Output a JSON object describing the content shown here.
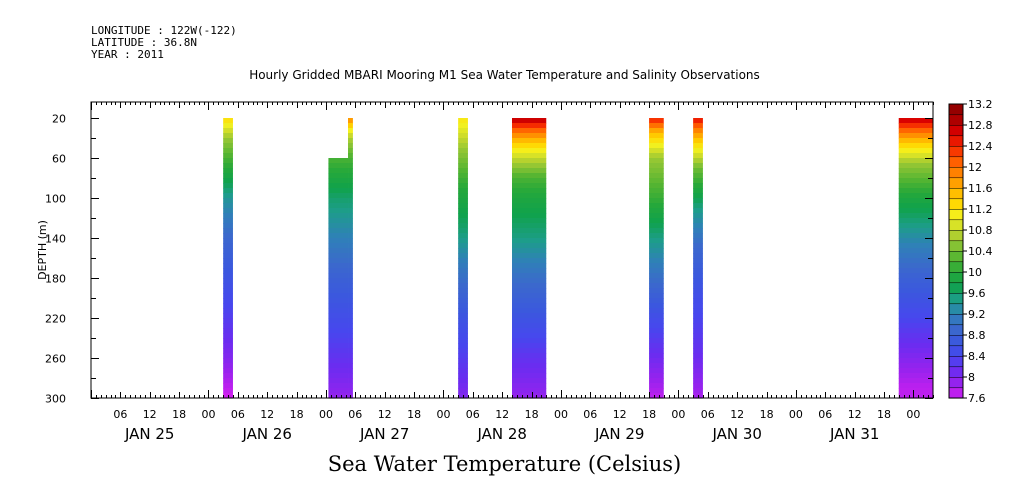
{
  "header": {
    "longitude": "LONGITUDE : 122W(-122)",
    "latitude": "LATITUDE : 36.8N",
    "year": "YEAR : 2011"
  },
  "chart_data": {
    "type": "heatmap",
    "title": "Hourly Gridded MBARI Mooring M1 Sea Water Temperature and Salinity Observations",
    "subtitle": "Sea Water Temperature (Celsius)",
    "xlabel": "",
    "ylabel": "DEPTH (m)",
    "x_range_hours": [
      0,
      172
    ],
    "x_day_labels": [
      "JAN 25",
      "JAN 26",
      "JAN 27",
      "JAN 28",
      "JAN 29",
      "JAN 30",
      "JAN 31"
    ],
    "x_hour_tick_labels": [
      "06",
      "12",
      "18",
      "00"
    ],
    "y_range": [
      300,
      4
    ],
    "y_ticks": [
      20,
      60,
      100,
      140,
      180,
      220,
      260,
      300
    ],
    "colorbar": {
      "min": 7.6,
      "max": 13.2,
      "step": 0.2,
      "tick_labels": [
        "7.6",
        "8",
        "8.4",
        "8.8",
        "9.2",
        "9.6",
        "10",
        "10.4",
        "10.8",
        "11.2",
        "11.6",
        "12",
        "12.4",
        "12.8",
        "13.2"
      ]
    },
    "grid": false,
    "segments": [
      {
        "start_hour": 27,
        "end_hour": 29,
        "top_depth": 20,
        "profile": [
          [
            20,
            11.3
          ],
          [
            40,
            10.6
          ],
          [
            70,
            10.0
          ],
          [
            100,
            9.4
          ],
          [
            140,
            8.9
          ],
          [
            180,
            8.6
          ],
          [
            220,
            8.3
          ],
          [
            260,
            8.0
          ],
          [
            300,
            7.6
          ]
        ]
      },
      {
        "start_hour": 48.5,
        "end_hour": 52.5,
        "top_depth": 60,
        "profile": [
          [
            60,
            10.2
          ],
          [
            100,
            9.6
          ],
          [
            140,
            9.2
          ],
          [
            180,
            8.8
          ],
          [
            220,
            8.5
          ],
          [
            260,
            8.2
          ],
          [
            300,
            7.9
          ]
        ]
      },
      {
        "start_hour": 52.5,
        "end_hour": 53.5,
        "top_depth": 20,
        "profile": [
          [
            20,
            11.9
          ],
          [
            30,
            11.2
          ],
          [
            40,
            10.7
          ],
          [
            60,
            10.2
          ],
          [
            100,
            9.6
          ],
          [
            140,
            9.2
          ],
          [
            180,
            8.8
          ],
          [
            220,
            8.5
          ],
          [
            260,
            8.2
          ],
          [
            300,
            7.9
          ]
        ]
      },
      {
        "start_hour": 75,
        "end_hour": 77,
        "top_depth": 20,
        "profile": [
          [
            20,
            11.2
          ],
          [
            50,
            10.6
          ],
          [
            90,
            10.0
          ],
          [
            130,
            9.6
          ],
          [
            170,
            9.1
          ],
          [
            220,
            8.6
          ],
          [
            260,
            8.3
          ],
          [
            300,
            8.0
          ]
        ]
      },
      {
        "start_hour": 86,
        "end_hour": 93,
        "top_depth": 20,
        "profile": [
          [
            20,
            12.9
          ],
          [
            30,
            12.2
          ],
          [
            45,
            11.4
          ],
          [
            60,
            10.8
          ],
          [
            80,
            10.2
          ],
          [
            100,
            9.9
          ],
          [
            140,
            9.5
          ],
          [
            180,
            9.0
          ],
          [
            220,
            8.6
          ],
          [
            260,
            8.2
          ],
          [
            300,
            7.9
          ]
        ]
      },
      {
        "start_hour": 114,
        "end_hour": 117,
        "top_depth": 20,
        "profile": [
          [
            20,
            12.5
          ],
          [
            35,
            11.5
          ],
          [
            60,
            10.6
          ],
          [
            100,
            10.1
          ],
          [
            140,
            9.5
          ],
          [
            180,
            9.0
          ],
          [
            220,
            8.5
          ],
          [
            260,
            8.1
          ],
          [
            300,
            7.7
          ]
        ]
      },
      {
        "start_hour": 123,
        "end_hour": 125,
        "top_depth": 20,
        "profile": [
          [
            20,
            12.6
          ],
          [
            30,
            12.0
          ],
          [
            45,
            11.3
          ],
          [
            70,
            10.4
          ],
          [
            110,
            9.5
          ],
          [
            150,
            8.9
          ],
          [
            200,
            8.5
          ],
          [
            250,
            8.2
          ],
          [
            300,
            7.8
          ]
        ]
      },
      {
        "start_hour": 165,
        "end_hour": 172,
        "top_depth": 20,
        "profile": [
          [
            20,
            12.8
          ],
          [
            30,
            12.2
          ],
          [
            45,
            11.4
          ],
          [
            65,
            10.6
          ],
          [
            100,
            9.9
          ],
          [
            140,
            9.3
          ],
          [
            180,
            8.8
          ],
          [
            220,
            8.4
          ],
          [
            260,
            8.0
          ],
          [
            290,
            7.7
          ],
          [
            300,
            7.7
          ]
        ]
      }
    ]
  }
}
